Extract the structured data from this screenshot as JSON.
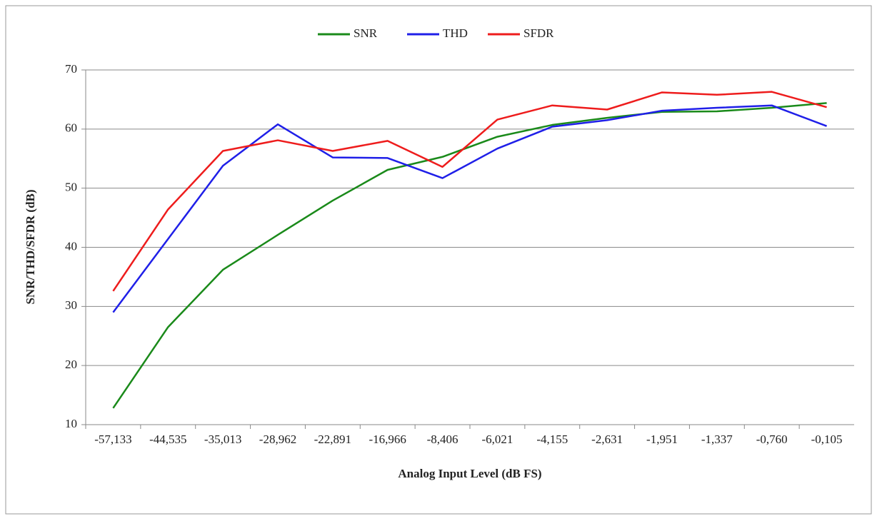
{
  "chart_data": {
    "type": "line",
    "xlabel": "Analog Input Level (dB FS)",
    "ylabel": "SNR/THD/SFDR (dB)",
    "categories": [
      "-57,133",
      "-44,535",
      "-35,013",
      "-28,962",
      "-22,891",
      "-16,966",
      "-8,406",
      "-6,021",
      "-4,155",
      "-2,631",
      "-1,951",
      "-1,337",
      "-0,760",
      "-0,105"
    ],
    "series": [
      {
        "name": "SNR",
        "color": "#1a8a1a",
        "values": [
          12.8,
          26.5,
          36.2,
          42.1,
          47.9,
          53.1,
          55.3,
          58.7,
          60.7,
          61.9,
          62.9,
          63.0,
          63.6,
          64.4
        ]
      },
      {
        "name": "THD",
        "color": "#1f1fe8",
        "values": [
          29.0,
          41.4,
          53.8,
          60.8,
          55.2,
          55.1,
          51.7,
          56.7,
          60.4,
          61.5,
          63.1,
          63.6,
          64.0,
          60.5
        ]
      },
      {
        "name": "SFDR",
        "color": "#ee1c1c",
        "values": [
          32.6,
          46.4,
          56.3,
          58.1,
          56.3,
          58.0,
          53.6,
          61.6,
          64.0,
          63.3,
          66.2,
          65.8,
          66.3,
          63.7
        ]
      }
    ],
    "ylim": [
      10,
      70
    ],
    "yticks": [
      10,
      20,
      30,
      40,
      50,
      60,
      70
    ],
    "grid": true,
    "legend": "top"
  }
}
